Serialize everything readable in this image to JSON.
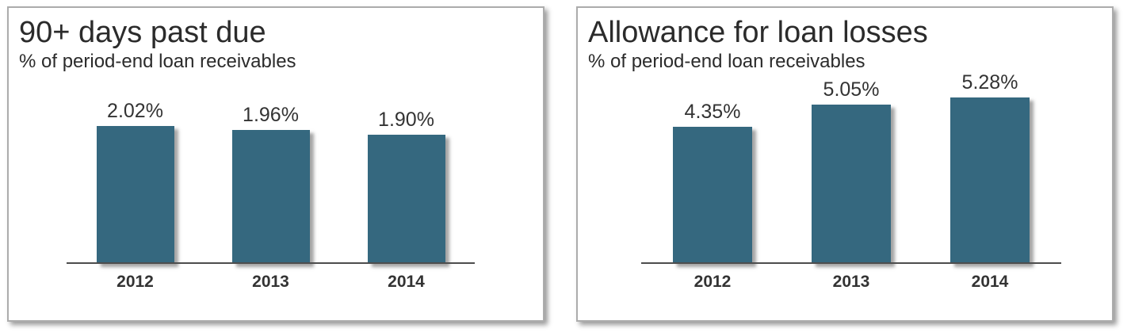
{
  "page": {
    "background": "#ffffff"
  },
  "colors": {
    "bar_fill": "#35687F",
    "panel_border": "#ACACAC",
    "title_text": "#2B2B2B",
    "label_text": "#333333",
    "axis_line": "#4D4D4D"
  },
  "chart_data": [
    {
      "type": "bar",
      "title": "90+ days past due",
      "subtitle": "% of period-end loan receivables",
      "categories": [
        "2012",
        "2013",
        "2014"
      ],
      "values": [
        2.02,
        1.96,
        1.9
      ],
      "value_labels": [
        "2.02%",
        "1.96%",
        "1.90%"
      ],
      "xlabel": "",
      "ylabel": "",
      "ylim": [
        0,
        2.5
      ],
      "grid": false,
      "legend": false,
      "bar_color": "#35687F"
    },
    {
      "type": "bar",
      "title": "Allowance for loan losses",
      "subtitle": "% of period-end loan receivables",
      "categories": [
        "2012",
        "2013",
        "2014"
      ],
      "values": [
        4.35,
        5.05,
        5.28
      ],
      "value_labels": [
        "4.35%",
        "5.05%",
        "5.28%"
      ],
      "xlabel": "",
      "ylabel": "",
      "ylim": [
        0,
        5.4
      ],
      "grid": false,
      "legend": false,
      "bar_color": "#35687F"
    }
  ]
}
